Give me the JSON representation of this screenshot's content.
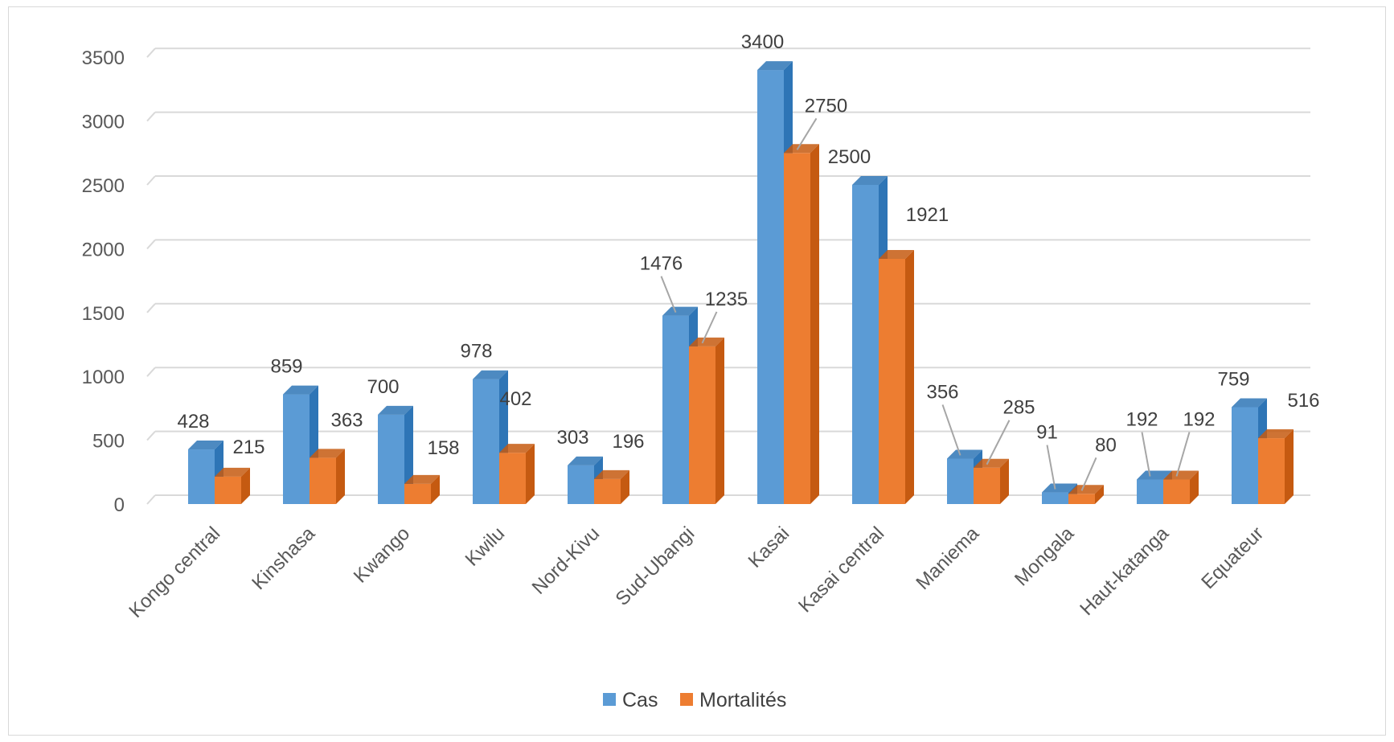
{
  "chart_data": {
    "type": "bar",
    "style": "3d-clustered-column",
    "categories": [
      "Kongo central",
      "Kinshasa",
      "Kwango",
      "Kwilu",
      "Nord-Kivu",
      "Sud-Ubangi",
      "Kasai",
      "Kasai central",
      "Maniema",
      "Mongala",
      "Haut-katanga",
      "Equateur"
    ],
    "series": [
      {
        "name": "Cas",
        "color": "#5b9bd5",
        "side_color": "#2e75b6",
        "values": [
          428,
          859,
          700,
          978,
          303,
          1476,
          3400,
          2500,
          356,
          91,
          192,
          759
        ]
      },
      {
        "name": "Mortalités",
        "color": "#ed7d31",
        "side_color": "#c55a11",
        "values": [
          215,
          363,
          158,
          402,
          196,
          1235,
          2750,
          1921,
          285,
          80,
          192,
          516
        ]
      }
    ],
    "ylim": [
      0,
      3500
    ],
    "yticks": [
      0,
      500,
      1000,
      1500,
      2000,
      2500,
      3000,
      3500
    ],
    "grid": true,
    "legend_position": "bottom",
    "data_labels": true
  }
}
